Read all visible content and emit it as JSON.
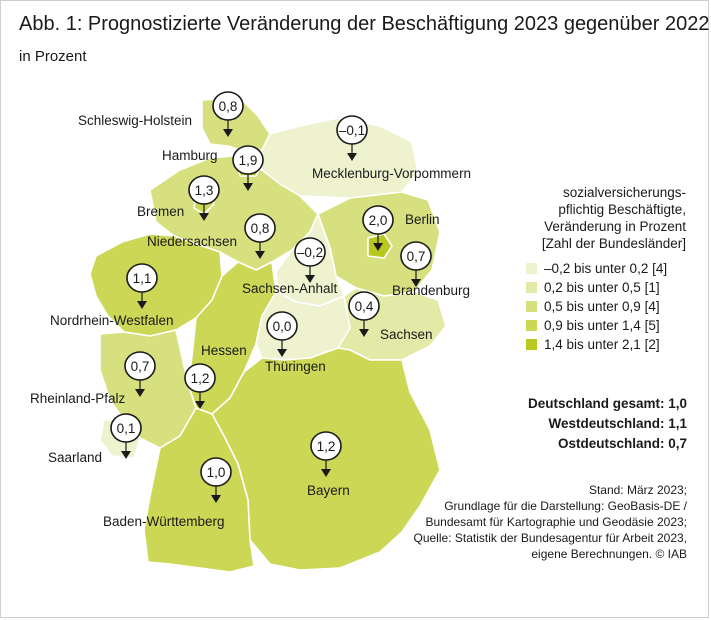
{
  "title": "Abb. 1: Prognostizierte Veränderung der Beschäftigung 2023 gegenüber 2022",
  "subtitle": "in Prozent",
  "legend": {
    "heading": [
      "sozialversicherungs-",
      "pflichtig Beschäftigte,",
      "Veränderung in Prozent",
      "[Zahl der Bundesländer]"
    ],
    "items": [
      {
        "label": "–0,2 bis unter 0,2 [4]",
        "color": "#eef2cf"
      },
      {
        "label": "0,2 bis unter 0,5 [1]",
        "color": "#e3eaa8"
      },
      {
        "label": "0,5 bis unter 0,9 [4]",
        "color": "#d7e07f"
      },
      {
        "label": "0,9 bis unter 1,4 [5]",
        "color": "#cbd755"
      },
      {
        "label": "1,4 bis unter 2,1 [2]",
        "color": "#b8c81e"
      }
    ]
  },
  "totals": [
    {
      "label": "Deutschland gesamt: 1,0"
    },
    {
      "label": "Westdeutschland: 1,1"
    },
    {
      "label": "Ostdeutschland: 0,7"
    }
  ],
  "source": [
    "Stand: März 2023;",
    "Grundlage für die Darstellung: GeoBasis-DE /",
    "Bundesamt für Kartographie und Geodäsie 2023;",
    "Quelle: Statistik der Bundesagentur für Arbeit 2023,",
    "eigene Berechnungen. © IAB"
  ],
  "states": [
    {
      "name": "Schleswig-Holstein",
      "value": "0,8",
      "color": "#d7e07f"
    },
    {
      "name": "Hamburg",
      "value": "1,9",
      "color": "#b8c81e"
    },
    {
      "name": "Mecklenburg-Vorpommern",
      "value": "–0,1",
      "color": "#eef2cf"
    },
    {
      "name": "Bremen",
      "value": "1,3",
      "color": "#cbd755"
    },
    {
      "name": "Niedersachsen",
      "value": "0,8",
      "color": "#d7e07f"
    },
    {
      "name": "Berlin",
      "value": "2,0",
      "color": "#b8c81e"
    },
    {
      "name": "Brandenburg",
      "value": "0,7",
      "color": "#d7e07f"
    },
    {
      "name": "Sachsen-Anhalt",
      "value": "–0,2",
      "color": "#eef2cf"
    },
    {
      "name": "Nordrhein-Westfalen",
      "value": "1,1",
      "color": "#cbd755"
    },
    {
      "name": "Sachsen",
      "value": "0,4",
      "color": "#e3eaa8"
    },
    {
      "name": "Hessen",
      "value": "1,2",
      "color": "#cbd755"
    },
    {
      "name": "Thüringen",
      "value": "0,0",
      "color": "#eef2cf"
    },
    {
      "name": "Rheinland-Pfalz",
      "value": "0,7",
      "color": "#d7e07f"
    },
    {
      "name": "Saarland",
      "value": "0,1",
      "color": "#eef2cf"
    },
    {
      "name": "Bayern",
      "value": "1,2",
      "color": "#cbd755"
    },
    {
      "name": "Baden-Württemberg",
      "value": "1,0",
      "color": "#cbd755"
    }
  ]
}
